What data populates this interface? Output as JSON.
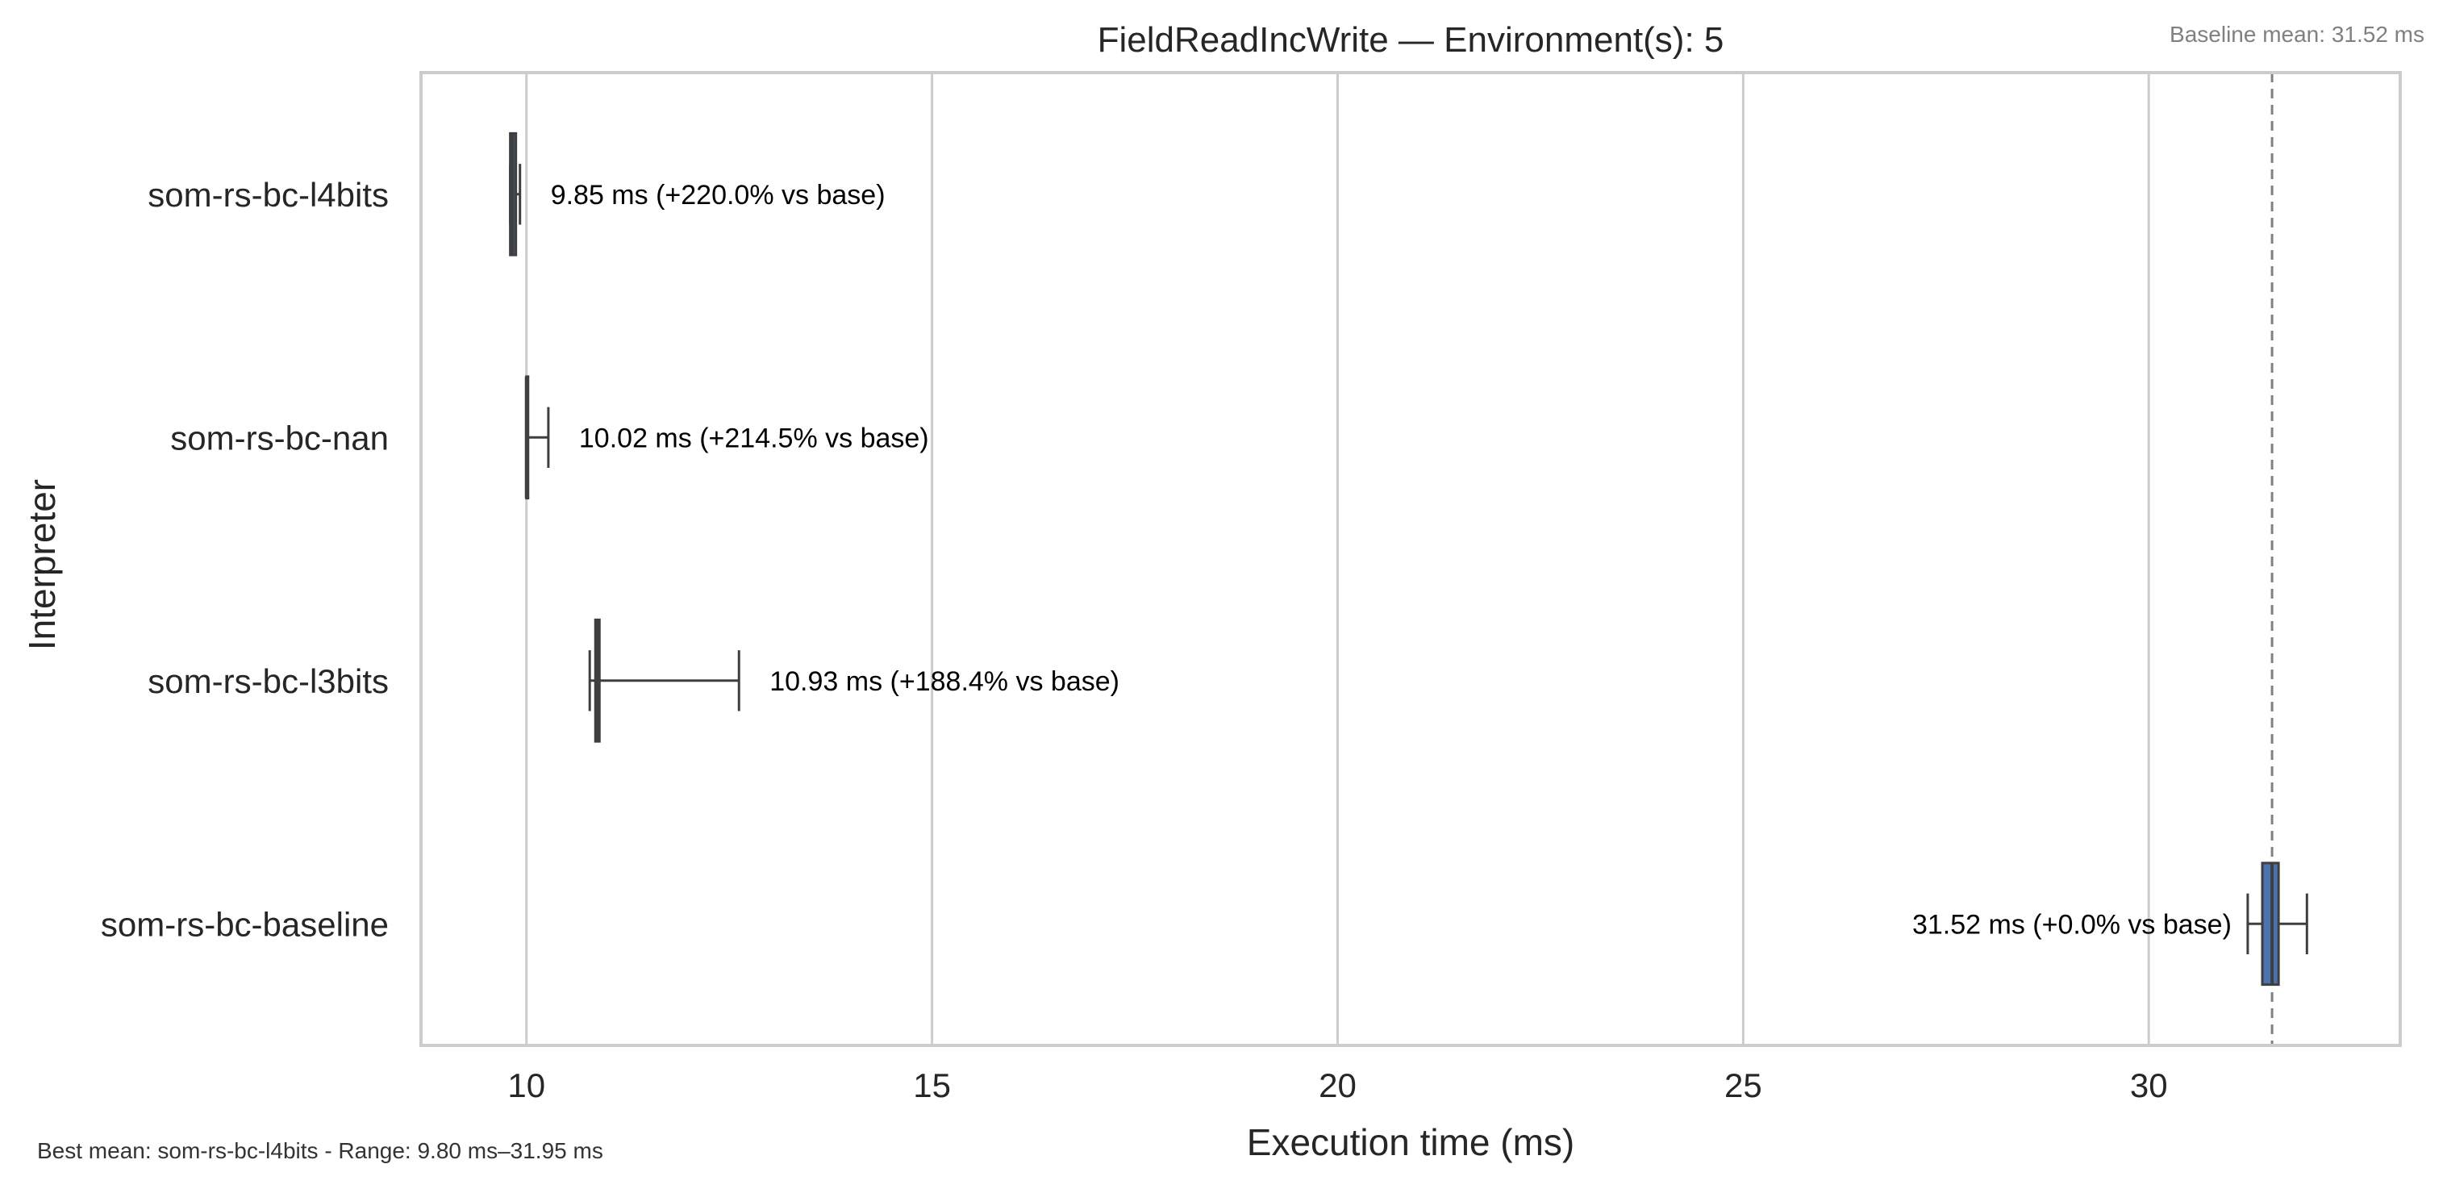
{
  "title": "FieldReadIncWrite — Environment(s): 5",
  "baseline_note": "Baseline mean: 31.52 ms",
  "footer_note": "Best mean: som-rs-bc-l4bits - Range: 9.80 ms–31.95 ms",
  "colors": {
    "box_fill": "#4c72b0",
    "box_edge": "#3f3f3f",
    "grid": "#cccccc",
    "frame": "#cccccc",
    "baseline_line": "#808080",
    "label_text": "#000000",
    "axis_text": "#262626",
    "note_text": "#808080"
  },
  "chart_data": {
    "type": "box",
    "orientation": "horizontal",
    "title": "FieldReadIncWrite — Environment(s): 5",
    "xlabel": "Execution time (ms)",
    "ylabel": "Interpreter",
    "xlim": [
      8.7,
      33.1
    ],
    "xticks": [
      10,
      15,
      20,
      25,
      30
    ],
    "grid": "vertical",
    "baseline_mean": 31.52,
    "categories": [
      "som-rs-bc-l4bits",
      "som-rs-bc-nan",
      "som-rs-bc-l3bits",
      "som-rs-bc-baseline"
    ],
    "boxes": [
      {
        "name": "som-rs-bc-l4bits",
        "mean": 9.85,
        "whisker_low": 9.8,
        "q1": 9.8,
        "median": 9.83,
        "q3": 9.87,
        "whisker_high": 9.92,
        "label": "9.85 ms  (+220.0% vs base)"
      },
      {
        "name": "som-rs-bc-nan",
        "mean": 10.02,
        "whisker_low": 10.0,
        "q1": 10.0,
        "median": 10.0,
        "q3": 10.02,
        "whisker_high": 10.27,
        "label": "10.02 ms  (+214.5% vs base)"
      },
      {
        "name": "som-rs-bc-l3bits",
        "mean": 10.93,
        "whisker_low": 10.78,
        "q1": 10.85,
        "median": 10.87,
        "q3": 10.9,
        "whisker_high": 12.62,
        "label": "10.93 ms  (+188.4% vs base)"
      },
      {
        "name": "som-rs-bc-baseline",
        "mean": 31.52,
        "whisker_low": 31.22,
        "q1": 31.4,
        "median": 31.52,
        "q3": 31.6,
        "whisker_high": 31.95,
        "label": "31.52 ms  (+0.0% vs base)"
      }
    ]
  }
}
